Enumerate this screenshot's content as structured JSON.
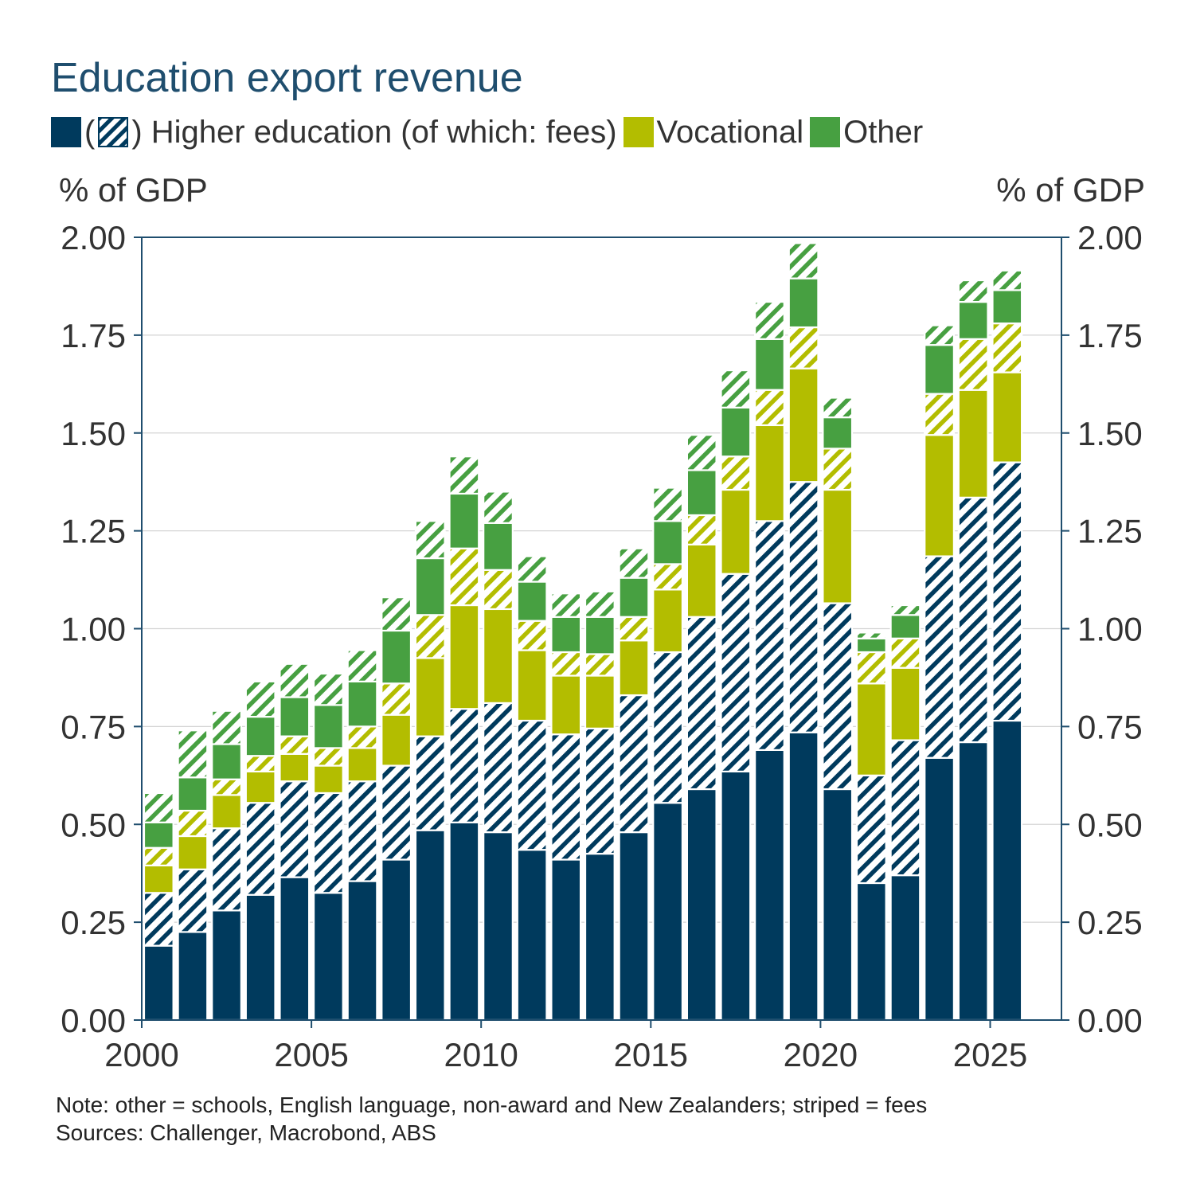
{
  "chart_data": {
    "type": "bar",
    "stacked": true,
    "title": "Education export revenue",
    "legend": {
      "placement": "top-left",
      "entries": [
        {
          "id": "higher",
          "label_before": "(",
          "label_after": ") Higher education (of which: fees)"
        },
        {
          "id": "vocational",
          "label": "Vocational"
        },
        {
          "id": "other",
          "label": "Other"
        }
      ]
    },
    "ylabel_left": "% of GDP",
    "ylabel_right": "% of GDP",
    "ylim": [
      0,
      2
    ],
    "yticks": [
      "0.00",
      "0.25",
      "0.50",
      "0.75",
      "1.00",
      "1.25",
      "1.50",
      "1.75",
      "2.00"
    ],
    "ytick_values": [
      0,
      0.25,
      0.5,
      0.75,
      1.0,
      1.25,
      1.5,
      1.75,
      2.0
    ],
    "xlim": [
      2000,
      2027.1
    ],
    "xticks": [
      "2000",
      "2005",
      "2010",
      "2015",
      "2020",
      "2025"
    ],
    "xtick_values": [
      2000,
      2005,
      2010,
      2015,
      2020,
      2025
    ],
    "grid": true,
    "x": [
      2000.5,
      2001.5,
      2002.5,
      2003.5,
      2004.5,
      2005.5,
      2006.5,
      2007.5,
      2008.5,
      2009.5,
      2010.5,
      2011.5,
      2012.5,
      2013.5,
      2014.5,
      2015.5,
      2016.5,
      2017.5,
      2018.5,
      2019.5,
      2020.5,
      2021.5,
      2022.5,
      2023.5,
      2024.5,
      2025.5
    ],
    "colors": {
      "higher": "#003a5d",
      "vocational": "#b3bd00",
      "other": "#47a041",
      "border": "#1f4e6e",
      "stripe_bg": "#ffffff"
    },
    "segments": [
      {
        "series": "Higher education",
        "fill": "solid",
        "color": "higher",
        "values": [
          0.19,
          0.225,
          0.28,
          0.32,
          0.365,
          0.325,
          0.355,
          0.41,
          0.485,
          0.505,
          0.48,
          0.435,
          0.41,
          0.425,
          0.48,
          0.555,
          0.59,
          0.635,
          0.69,
          0.735,
          0.59,
          0.35,
          0.37,
          0.67,
          0.71,
          0.765
        ]
      },
      {
        "series": "Higher education fees",
        "fill": "striped",
        "color": "higher",
        "values": [
          0.135,
          0.16,
          0.21,
          0.235,
          0.245,
          0.255,
          0.255,
          0.24,
          0.24,
          0.29,
          0.33,
          0.33,
          0.32,
          0.32,
          0.35,
          0.385,
          0.44,
          0.505,
          0.585,
          0.64,
          0.475,
          0.275,
          0.345,
          0.515,
          0.625,
          0.66
        ]
      },
      {
        "series": "Vocational",
        "fill": "solid",
        "color": "vocational",
        "values": [
          0.07,
          0.085,
          0.085,
          0.08,
          0.07,
          0.07,
          0.085,
          0.13,
          0.2,
          0.265,
          0.24,
          0.18,
          0.15,
          0.135,
          0.14,
          0.16,
          0.185,
          0.215,
          0.245,
          0.29,
          0.29,
          0.235,
          0.185,
          0.31,
          0.275,
          0.23
        ]
      },
      {
        "series": "Vocational fees",
        "fill": "striped",
        "color": "vocational",
        "values": [
          0.045,
          0.065,
          0.04,
          0.04,
          0.045,
          0.045,
          0.055,
          0.08,
          0.11,
          0.145,
          0.1,
          0.075,
          0.06,
          0.055,
          0.06,
          0.065,
          0.075,
          0.085,
          0.09,
          0.105,
          0.105,
          0.08,
          0.075,
          0.105,
          0.13,
          0.125
        ]
      },
      {
        "series": "Other",
        "fill": "solid",
        "color": "other",
        "values": [
          0.065,
          0.085,
          0.09,
          0.1,
          0.1,
          0.11,
          0.115,
          0.135,
          0.145,
          0.14,
          0.12,
          0.1,
          0.09,
          0.095,
          0.1,
          0.11,
          0.115,
          0.125,
          0.13,
          0.125,
          0.08,
          0.035,
          0.06,
          0.125,
          0.095,
          0.085
        ]
      },
      {
        "series": "Other fees",
        "fill": "striped",
        "color": "other",
        "values": [
          0.075,
          0.12,
          0.085,
          0.09,
          0.085,
          0.08,
          0.08,
          0.085,
          0.095,
          0.095,
          0.08,
          0.065,
          0.06,
          0.065,
          0.075,
          0.085,
          0.09,
          0.095,
          0.095,
          0.09,
          0.05,
          0.015,
          0.025,
          0.05,
          0.055,
          0.05
        ]
      }
    ]
  },
  "notes": {
    "note": "Note: other = schools, English language, non-award and New Zealanders; striped = fees",
    "sources": "Sources: Challenger, Macrobond, ABS"
  }
}
